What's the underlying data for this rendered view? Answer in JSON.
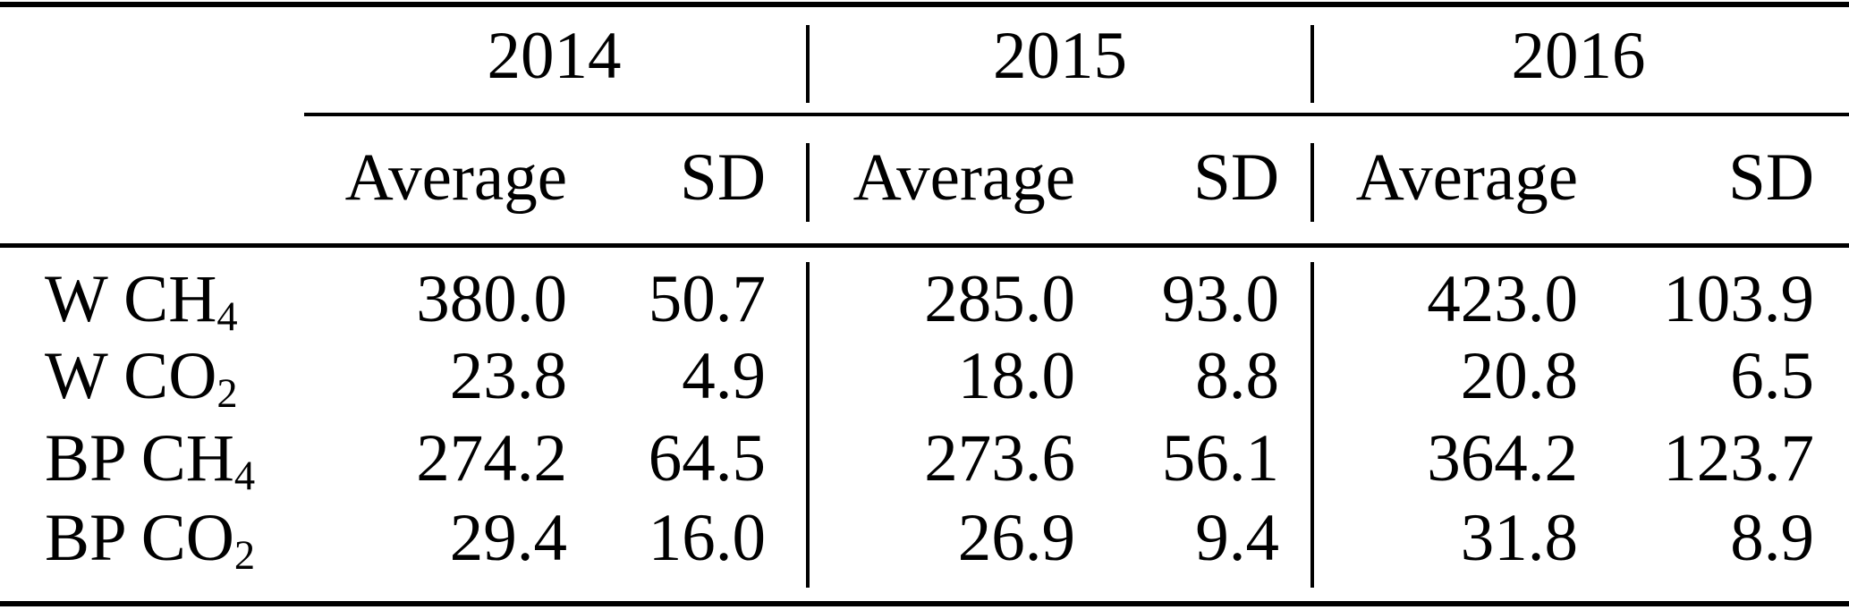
{
  "table": {
    "year_groups": [
      {
        "year": "2014",
        "subcolumns": [
          "Average",
          "SD"
        ]
      },
      {
        "year": "2015",
        "subcolumns": [
          "Average",
          "SD"
        ]
      },
      {
        "year": "2016",
        "subcolumns": [
          "Average",
          "SD"
        ]
      }
    ],
    "rows": [
      {
        "label_main": "W CH",
        "label_sub": "4",
        "values": [
          "380.0",
          "50.7",
          "285.0",
          "93.0",
          "423.0",
          "103.9"
        ]
      },
      {
        "label_main": "W CO",
        "label_sub": "2",
        "values": [
          "23.8",
          "4.9",
          "18.0",
          "8.8",
          "20.8",
          "6.5"
        ]
      },
      {
        "label_main": "BP CH",
        "label_sub": "4",
        "values": [
          "274.2",
          "64.5",
          "273.6",
          "56.1",
          "364.2",
          "123.7"
        ]
      },
      {
        "label_main": "BP CO",
        "label_sub": "2",
        "values": [
          "29.4",
          "16.0",
          "26.9",
          "9.4",
          "31.8",
          "8.9"
        ]
      }
    ]
  },
  "colors": {
    "text": "#000000",
    "rules": "#000000",
    "background": "#ffffff"
  },
  "chart_data": {
    "type": "table",
    "column_groups": [
      "2014",
      "2015",
      "2016"
    ],
    "column_headers": [
      "Average",
      "SD",
      "Average",
      "SD",
      "Average",
      "SD"
    ],
    "row_labels": [
      "W CH4",
      "W CO2",
      "BP CH4",
      "BP CO2"
    ],
    "values": [
      [
        380.0,
        50.7,
        285.0,
        93.0,
        423.0,
        103.9
      ],
      [
        23.8,
        4.9,
        18.0,
        8.8,
        20.8,
        6.5
      ],
      [
        274.2,
        64.5,
        273.6,
        56.1,
        364.2,
        123.7
      ],
      [
        29.4,
        16.0,
        26.9,
        9.4,
        31.8,
        8.9
      ]
    ]
  }
}
